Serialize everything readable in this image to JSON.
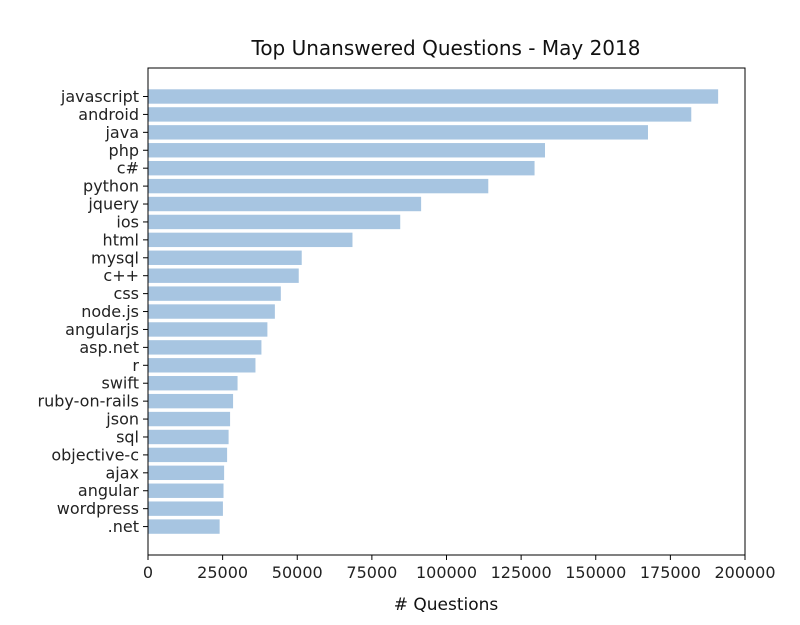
{
  "chart_data": {
    "type": "bar",
    "orientation": "horizontal",
    "title": "Top Unanswered Questions - May 2018",
    "xlabel": "# Questions",
    "ylabel": "",
    "xlim": [
      0,
      200000
    ],
    "xticks": [
      0,
      25000,
      50000,
      75000,
      100000,
      125000,
      150000,
      175000,
      200000
    ],
    "grid": false,
    "bar_color": "#a7c5e1",
    "categories": [
      "javascript",
      "android",
      "java",
      "php",
      "c#",
      "python",
      "jquery",
      "ios",
      "html",
      "mysql",
      "c++",
      "css",
      "node.js",
      "angularjs",
      "asp.net",
      "r",
      "swift",
      "ruby-on-rails",
      "json",
      "sql",
      "objective-c",
      "ajax",
      "angular",
      "wordpress",
      ".net"
    ],
    "values": [
      191000,
      182000,
      167500,
      133000,
      129500,
      114000,
      91500,
      84500,
      68500,
      51500,
      50500,
      44500,
      42500,
      40000,
      38000,
      36000,
      30000,
      28500,
      27500,
      27000,
      26500,
      25500,
      25300,
      25100,
      24000
    ]
  }
}
